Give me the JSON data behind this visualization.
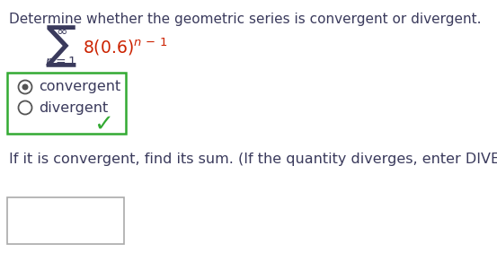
{
  "title_text": "Determine whether the geometric series is convergent or divergent.",
  "text_color": "#3a3a5c",
  "series_color": "#cc2200",
  "radio_box_color": "#33aa33",
  "background_color": "#ffffff",
  "title_fontsize": 11.0,
  "label_fontsize": 11.5,
  "series_fontsize": 13.5,
  "bottom_text": "If it is convergent, find its sum. (If the quantity diverges, enter DIVERGES.)"
}
